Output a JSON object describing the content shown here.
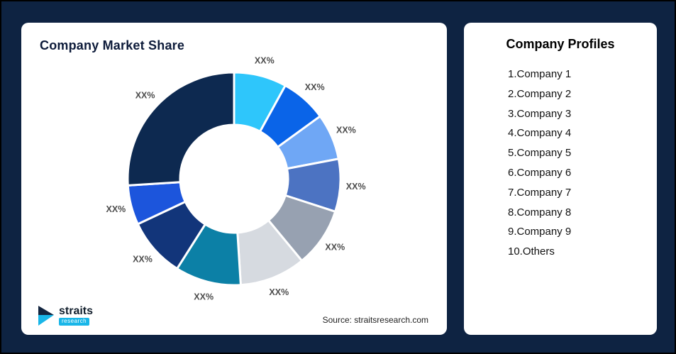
{
  "left_card": {
    "title": "Company Market Share",
    "source": "Source: straitsresearch.com",
    "logo": {
      "name": "straits",
      "sub": "research"
    }
  },
  "right_card": {
    "title": "Company Profiles",
    "items": [
      "1.Company 1",
      "2.Company 2",
      "3.Company 3",
      "4.Company 4",
      "5.Company 5",
      "6.Company 6",
      "7.Company 7",
      "8.Company 8",
      "9.Company 9",
      "10.Others"
    ]
  },
  "chart_data": {
    "type": "pie",
    "donut": true,
    "title": "Company Market Share",
    "labels": [
      "XX%",
      "XX%",
      "XX%",
      "XX%",
      "XX%",
      "XX%",
      "XX%",
      "XX%",
      "XX%",
      "XX%"
    ],
    "values": [
      8,
      7,
      7,
      8,
      9,
      10,
      10,
      9,
      6,
      26
    ],
    "colors": [
      "#2EC6FB",
      "#0A64E8",
      "#6FA7F5",
      "#4C73C2",
      "#97A1B1",
      "#D6DAE0",
      "#0C80A6",
      "#12357A",
      "#1C55DC",
      "#0D2950"
    ],
    "segment_names": [
      "Company 1",
      "Company 2",
      "Company 3",
      "Company 4",
      "Company 5",
      "Company 6",
      "Company 7",
      "Company 8",
      "Company 9",
      "Others"
    ],
    "legend_position": "none",
    "source": "Source: straitsresearch.com"
  },
  "colors": {
    "background": "#0e2342",
    "card": "#ffffff",
    "accent_cyan": "#19b6e8",
    "title_navy": "#0d1b3a"
  }
}
